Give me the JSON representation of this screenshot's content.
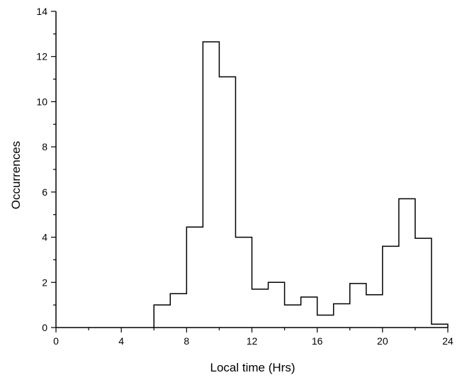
{
  "chart_data": {
    "type": "histogram",
    "title": "",
    "xlabel": "Local time (Hrs)",
    "ylabel": "Occurrences",
    "xlim": [
      0,
      24
    ],
    "ylim": [
      0,
      14
    ],
    "x_ticks": [
      0,
      4,
      8,
      12,
      16,
      20,
      24
    ],
    "y_ticks": [
      0,
      2,
      4,
      6,
      8,
      10,
      12,
      14
    ],
    "grid": false,
    "legend": "none",
    "line_color": "#000000",
    "bins": [
      {
        "start": 0,
        "end": 1,
        "value": 0
      },
      {
        "start": 1,
        "end": 2,
        "value": 0
      },
      {
        "start": 2,
        "end": 3,
        "value": 0
      },
      {
        "start": 3,
        "end": 4,
        "value": 0
      },
      {
        "start": 4,
        "end": 5,
        "value": 0
      },
      {
        "start": 5,
        "end": 6,
        "value": 0
      },
      {
        "start": 6,
        "end": 7,
        "value": 1.0
      },
      {
        "start": 7,
        "end": 8,
        "value": 1.5
      },
      {
        "start": 8,
        "end": 9,
        "value": 4.45
      },
      {
        "start": 9,
        "end": 10,
        "value": 12.65
      },
      {
        "start": 10,
        "end": 11,
        "value": 11.1
      },
      {
        "start": 11,
        "end": 12,
        "value": 4.0
      },
      {
        "start": 12,
        "end": 13,
        "value": 1.7
      },
      {
        "start": 13,
        "end": 14,
        "value": 2.0
      },
      {
        "start": 14,
        "end": 15,
        "value": 1.0
      },
      {
        "start": 15,
        "end": 16,
        "value": 1.35
      },
      {
        "start": 16,
        "end": 17,
        "value": 0.55
      },
      {
        "start": 17,
        "end": 18,
        "value": 1.05
      },
      {
        "start": 18,
        "end": 19,
        "value": 1.95
      },
      {
        "start": 19,
        "end": 20,
        "value": 1.45
      },
      {
        "start": 20,
        "end": 21,
        "value": 3.6
      },
      {
        "start": 21,
        "end": 22,
        "value": 5.7
      },
      {
        "start": 22,
        "end": 23,
        "value": 3.95
      },
      {
        "start": 23,
        "end": 24,
        "value": 0.15
      }
    ]
  }
}
